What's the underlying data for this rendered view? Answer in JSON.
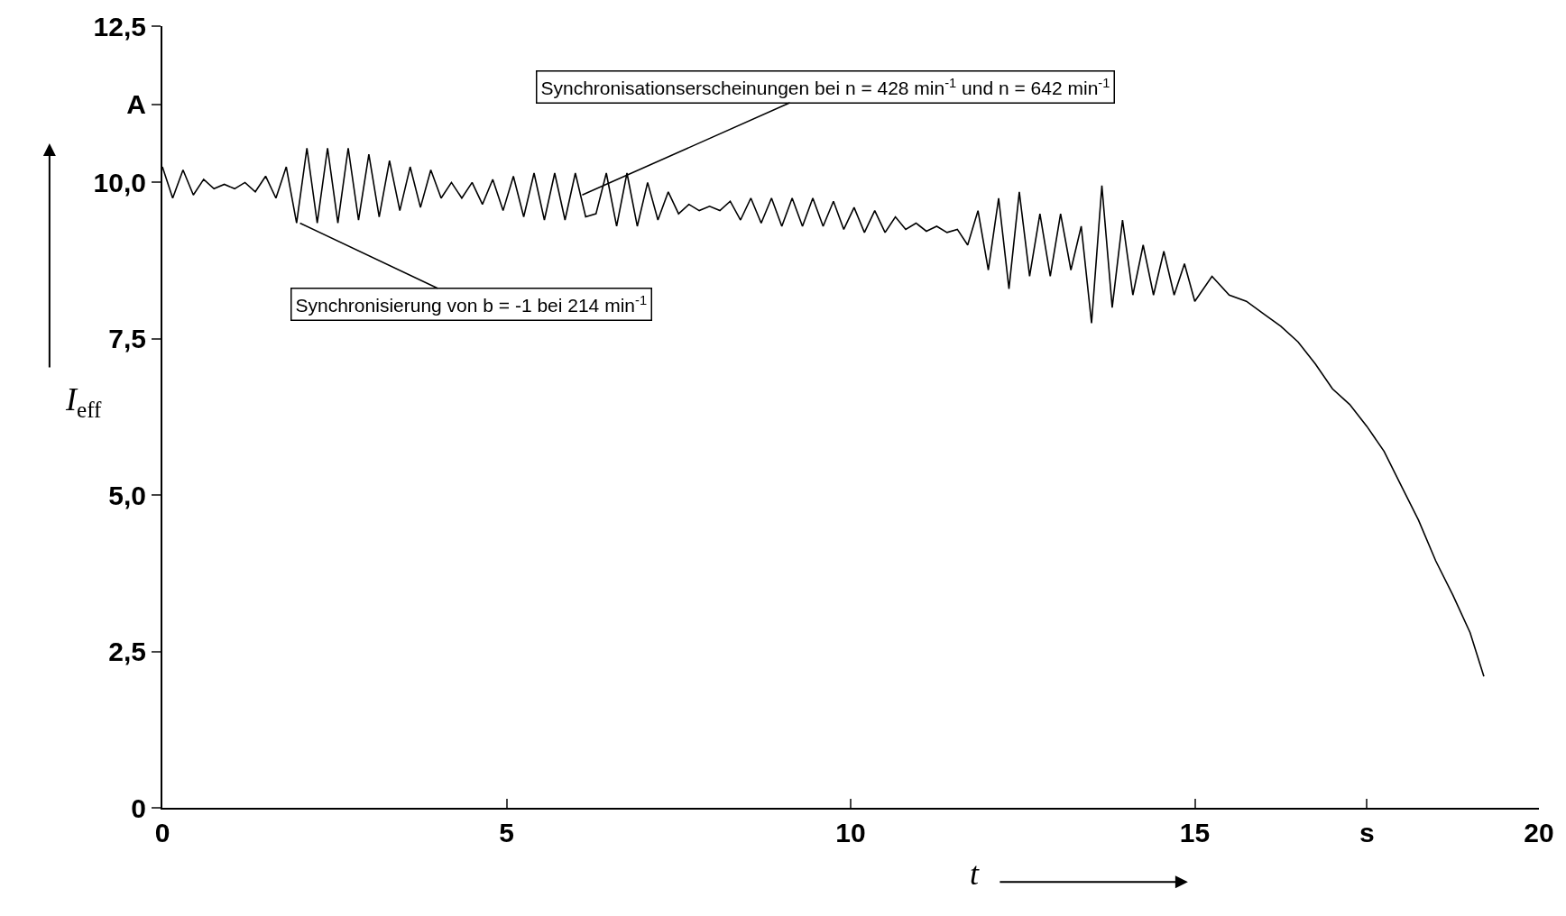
{
  "chart_data": {
    "type": "line",
    "xlabel": "t",
    "ylabel": "I$_{eff}$",
    "xlim": [
      0,
      20
    ],
    "ylim": [
      0,
      12.5
    ],
    "xticks": [
      0,
      5,
      10,
      15,
      {
        "value": 17.5,
        "label": "s"
      },
      20
    ],
    "yticks": [
      {
        "value": 0,
        "label": "0"
      },
      {
        "value": 2.5,
        "label": "2,5"
      },
      {
        "value": 5,
        "label": "5,0"
      },
      {
        "value": 7.5,
        "label": "7,5"
      },
      {
        "value": 10,
        "label": "10,0"
      },
      {
        "value": 11.25,
        "label": "A"
      },
      {
        "value": 12.5,
        "label": "12,5"
      }
    ],
    "marker": "none",
    "line_style": "solid",
    "annotations": [
      {
        "text": "Synchronisationserscheinungen bei n = 428 min$^{-1}$ und n = 642 min$^{-1}$",
        "x": 6.1,
        "y": 9.8
      },
      {
        "text": "Synchronisierung von b = -1 bei 214 min$^{-1}$",
        "x": 2.0,
        "y": 9.35
      }
    ],
    "series": [
      {
        "color": "#000000",
        "x": [
          0,
          0.15,
          0.3,
          0.45,
          0.6,
          0.75,
          0.9,
          1.05,
          1.2,
          1.35,
          1.5,
          1.65,
          1.8,
          1.95,
          2.1,
          2.25,
          2.4,
          2.55,
          2.7,
          2.85,
          3.0,
          3.15,
          3.3,
          3.45,
          3.6,
          3.75,
          3.9,
          4.05,
          4.2,
          4.35,
          4.5,
          4.65,
          4.8,
          4.95,
          5.1,
          5.25,
          5.4,
          5.55,
          5.7,
          5.85,
          6.0,
          6.15,
          6.3,
          6.45,
          6.6,
          6.75,
          6.9,
          7.05,
          7.2,
          7.35,
          7.5,
          7.65,
          7.8,
          7.95,
          8.1,
          8.25,
          8.4,
          8.55,
          8.7,
          8.85,
          9.0,
          9.15,
          9.3,
          9.45,
          9.6,
          9.75,
          9.9,
          10.05,
          10.2,
          10.35,
          10.5,
          10.65,
          10.8,
          10.95,
          11.1,
          11.25,
          11.4,
          11.55,
          11.7,
          11.85,
          12.0,
          12.15,
          12.3,
          12.45,
          12.6,
          12.75,
          12.9,
          13.05,
          13.2,
          13.35,
          13.5,
          13.65,
          13.8,
          13.95,
          14.1,
          14.25,
          14.4,
          14.55,
          14.7,
          14.85,
          15.0,
          15.25,
          15.5,
          15.75,
          16.0,
          16.25,
          16.5,
          16.75,
          17.0,
          17.25,
          17.5,
          17.75,
          18.0,
          18.25,
          18.5,
          18.75,
          19.0,
          19.2
        ],
        "values": [
          10.25,
          9.75,
          10.2,
          9.8,
          10.05,
          9.9,
          9.97,
          9.9,
          10.0,
          9.85,
          10.1,
          9.75,
          10.25,
          9.35,
          10.55,
          9.35,
          10.55,
          9.35,
          10.55,
          9.4,
          10.45,
          9.45,
          10.35,
          9.55,
          10.25,
          9.6,
          10.2,
          9.75,
          10.0,
          9.75,
          10.0,
          9.65,
          10.05,
          9.55,
          10.1,
          9.45,
          10.15,
          9.4,
          10.15,
          9.4,
          10.15,
          9.45,
          9.5,
          10.15,
          9.3,
          10.15,
          9.3,
          10.0,
          9.4,
          9.85,
          9.5,
          9.65,
          9.55,
          9.62,
          9.55,
          9.7,
          9.4,
          9.75,
          9.35,
          9.75,
          9.3,
          9.75,
          9.3,
          9.75,
          9.3,
          9.7,
          9.25,
          9.6,
          9.2,
          9.55,
          9.2,
          9.45,
          9.25,
          9.35,
          9.22,
          9.3,
          9.2,
          9.25,
          9.0,
          9.55,
          8.6,
          9.75,
          8.3,
          9.85,
          8.5,
          9.5,
          8.5,
          9.5,
          8.6,
          9.3,
          7.75,
          9.95,
          8.0,
          9.4,
          8.2,
          9.0,
          8.2,
          8.9,
          8.2,
          8.7,
          8.1,
          8.5,
          8.2,
          8.1,
          7.9,
          7.7,
          7.45,
          7.1,
          6.7,
          6.45,
          6.1,
          5.7,
          5.15,
          4.6,
          3.95,
          3.4,
          2.8,
          2.1
        ]
      }
    ]
  }
}
